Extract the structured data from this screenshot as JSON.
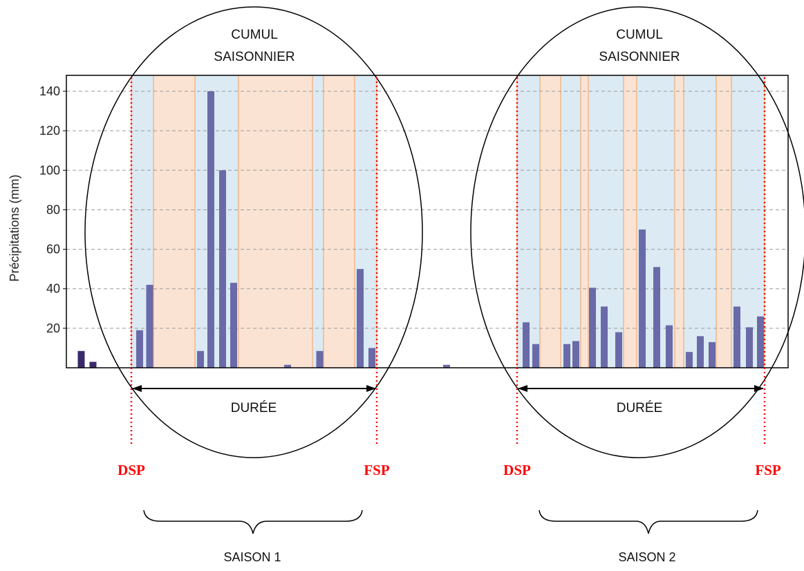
{
  "chart_data": {
    "type": "bar",
    "ylabel": "Précipitations (mm)",
    "yticks": [
      20,
      40,
      60,
      80,
      100,
      120,
      140
    ],
    "ylim": [
      0,
      148
    ],
    "grid": "horizontal dashed",
    "colors": {
      "bar": "#6a6aa8",
      "bar_dark": "#3a2a6a",
      "wet_band": "#dbeaf3",
      "dry_band": "#fbe3d3",
      "band_edge": "#f0a060",
      "marker_line": "#ff0000",
      "marker_text": "#ff0000",
      "ink": "#000000",
      "grid": "#9a9a9a"
    },
    "series": [
      {
        "values": [
          {
            "x": 117.5,
            "y": 8.5,
            "dark": true
          },
          {
            "x": 134.5,
            "y": 3,
            "dark": true
          },
          {
            "x": 202,
            "y": 19
          },
          {
            "x": 216.5,
            "y": 42
          },
          {
            "x": 290,
            "y": 8.5
          },
          {
            "x": 305,
            "y": 140
          },
          {
            "x": 322,
            "y": 100
          },
          {
            "x": 338,
            "y": 43
          },
          {
            "x": 416,
            "y": 1.5
          },
          {
            "x": 462.5,
            "y": 8.5
          },
          {
            "x": 521,
            "y": 50
          },
          {
            "x": 538,
            "y": 10
          },
          {
            "x": 646,
            "y": 1.5
          },
          {
            "x": 761,
            "y": 23
          },
          {
            "x": 775,
            "y": 12
          },
          {
            "x": 820,
            "y": 12
          },
          {
            "x": 833,
            "y": 13.5
          },
          {
            "x": 857,
            "y": 40.5
          },
          {
            "x": 874,
            "y": 31
          },
          {
            "x": 895,
            "y": 18
          },
          {
            "x": 929,
            "y": 70
          },
          {
            "x": 950,
            "y": 51
          },
          {
            "x": 968,
            "y": 21.5
          },
          {
            "x": 997,
            "y": 8
          },
          {
            "x": 1013,
            "y": 16
          },
          {
            "x": 1030,
            "y": 13
          },
          {
            "x": 1066,
            "y": 31
          },
          {
            "x": 1084,
            "y": 20.5
          },
          {
            "x": 1100,
            "y": 26
          }
        ]
      }
    ]
  },
  "bands": [
    {
      "from": 190,
      "to": 222,
      "kind": "wet"
    },
    {
      "from": 222,
      "to": 282,
      "kind": "dry"
    },
    {
      "from": 282,
      "to": 345,
      "kind": "wet"
    },
    {
      "from": 345,
      "to": 452,
      "kind": "dry"
    },
    {
      "from": 452,
      "to": 468,
      "kind": "wet"
    },
    {
      "from": 468,
      "to": 513,
      "kind": "dry"
    },
    {
      "from": 513,
      "to": 545,
      "kind": "wet"
    },
    {
      "from": 748,
      "to": 781,
      "kind": "wet"
    },
    {
      "from": 781,
      "to": 811,
      "kind": "dry"
    },
    {
      "from": 811,
      "to": 840,
      "kind": "wet"
    },
    {
      "from": 840,
      "to": 851,
      "kind": "dry"
    },
    {
      "from": 851,
      "to": 902,
      "kind": "wet"
    },
    {
      "from": 902,
      "to": 921,
      "kind": "dry"
    },
    {
      "from": 921,
      "to": 976,
      "kind": "wet"
    },
    {
      "from": 976,
      "to": 989,
      "kind": "dry"
    },
    {
      "from": 989,
      "to": 1036,
      "kind": "wet"
    },
    {
      "from": 1036,
      "to": 1058,
      "kind": "dry"
    },
    {
      "from": 1058,
      "to": 1106,
      "kind": "wet"
    }
  ],
  "seasons": [
    {
      "ellipse_label_line1": "CUMUL",
      "ellipse_label_line2": "SAISONNIER",
      "duration_label": "DURÉE",
      "start_label": "DSP",
      "end_label": "FSP",
      "season_label": "SAISON 1"
    },
    {
      "ellipse_label_line1": "CUMUL",
      "ellipse_label_line2": "SAISONNIER",
      "duration_label": "DURÉE",
      "start_label": "DSP",
      "end_label": "FSP",
      "season_label": "SAISON 2"
    }
  ]
}
